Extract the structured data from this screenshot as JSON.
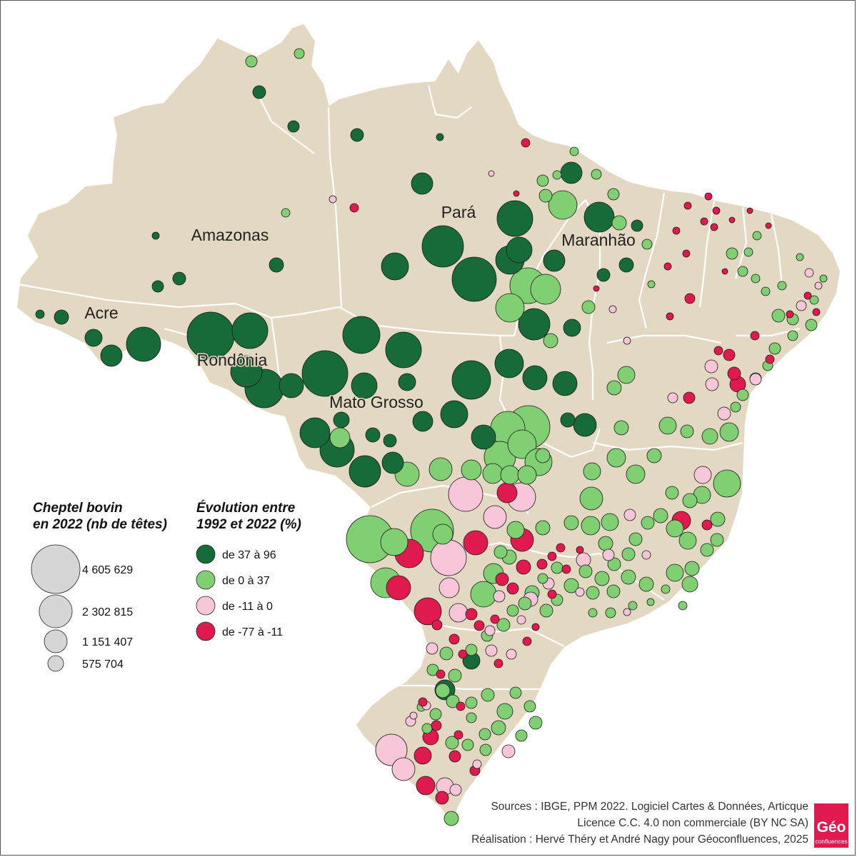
{
  "map": {
    "country": "Brésil",
    "land_color": "#e3d8c2",
    "border_color": "#ffffff",
    "state_labels": [
      "Pará",
      "Amazonas",
      "Maranhão",
      "Acre",
      "Rondônia",
      "Mato Grosso"
    ]
  },
  "legend": {
    "size": {
      "title_line1": "Cheptel bovin",
      "title_line2": "en 2022 (nb de têtes)",
      "entries": [
        {
          "value": 4605629,
          "label": "4 605 629"
        },
        {
          "value": 2302815,
          "label": "2 302 815"
        },
        {
          "value": 1151407,
          "label": "1 151 407"
        },
        {
          "value": 575704,
          "label": "575 704"
        }
      ],
      "symbol_color": "#d6d6d6"
    },
    "color": {
      "title_line1": "Évolution entre",
      "title_line2": "1992 et 2022 (%)",
      "classes": [
        {
          "label": "de 37 à 96",
          "color": "#166b38"
        },
        {
          "label": "de 0 à 37",
          "color": "#80cf72"
        },
        {
          "label": "de -11 à 0",
          "color": "#f8c6d8"
        },
        {
          "label": "de -77 à -11",
          "color": "#e01a4f"
        }
      ]
    }
  },
  "credits": {
    "line1": "Sources : IBGE, PPM 2022. Logiciel Cartes & Données, Articque",
    "line2": "Licence C.C. 4.0 non commerciale (BY NC SA)",
    "line3": "Réalisation : Hervé Théry et André Nagy pour Géoconfluences, 2025"
  },
  "logo": {
    "text": "Géo",
    "subtext": "confluences",
    "color": "#e01a4f"
  }
}
